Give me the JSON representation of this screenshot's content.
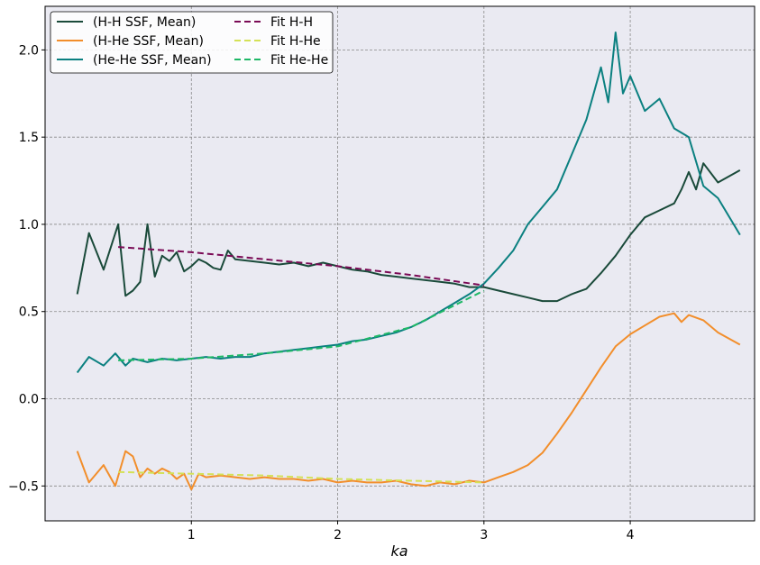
{
  "chart_data": {
    "type": "line",
    "xlabel": "ka",
    "ylabel": "",
    "xlim": [
      0.0,
      4.85
    ],
    "ylim": [
      -0.7,
      2.25
    ],
    "xticks": [
      1,
      2,
      3,
      4
    ],
    "xtick_labels": [
      "1",
      "2",
      "3",
      "4"
    ],
    "yticks": [
      -0.5,
      0.0,
      0.5,
      1.0,
      1.5,
      2.0
    ],
    "ytick_labels": [
      "−0.5",
      "0.0",
      "0.5",
      "1.0",
      "1.5",
      "2.0"
    ],
    "grid": true,
    "legend_position": "top-left",
    "background": "#eaeaf2",
    "series": [
      {
        "name": "(H-H SSF, Mean)",
        "color": "#1a4a3a",
        "style": "solid",
        "x": [
          0.22,
          0.3,
          0.4,
          0.5,
          0.55,
          0.6,
          0.65,
          0.7,
          0.75,
          0.8,
          0.85,
          0.9,
          0.95,
          1.0,
          1.05,
          1.1,
          1.15,
          1.2,
          1.25,
          1.3,
          1.4,
          1.5,
          1.6,
          1.7,
          1.8,
          1.9,
          2.0,
          2.1,
          2.2,
          2.3,
          2.4,
          2.5,
          2.6,
          2.7,
          2.8,
          2.9,
          3.0,
          3.1,
          3.2,
          3.3,
          3.4,
          3.5,
          3.6,
          3.7,
          3.8,
          3.9,
          4.0,
          4.1,
          4.2,
          4.3,
          4.35,
          4.4,
          4.45,
          4.5,
          4.6,
          4.75
        ],
        "y": [
          0.6,
          0.95,
          0.74,
          1.0,
          0.59,
          0.62,
          0.67,
          1.0,
          0.7,
          0.82,
          0.79,
          0.84,
          0.73,
          0.76,
          0.8,
          0.78,
          0.75,
          0.74,
          0.85,
          0.8,
          0.79,
          0.78,
          0.77,
          0.78,
          0.76,
          0.78,
          0.76,
          0.74,
          0.73,
          0.71,
          0.7,
          0.69,
          0.68,
          0.67,
          0.66,
          0.64,
          0.64,
          0.62,
          0.6,
          0.58,
          0.56,
          0.56,
          0.6,
          0.63,
          0.72,
          0.82,
          0.94,
          1.04,
          1.08,
          1.12,
          1.2,
          1.3,
          1.2,
          1.35,
          1.24,
          1.31
        ]
      },
      {
        "name": "(H-He SSF, Mean)",
        "color": "#f28e2b",
        "style": "solid",
        "x": [
          0.22,
          0.3,
          0.4,
          0.48,
          0.55,
          0.6,
          0.65,
          0.7,
          0.75,
          0.8,
          0.85,
          0.9,
          0.95,
          1.0,
          1.05,
          1.1,
          1.2,
          1.3,
          1.4,
          1.5,
          1.6,
          1.7,
          1.8,
          1.9,
          2.0,
          2.1,
          2.2,
          2.3,
          2.4,
          2.5,
          2.6,
          2.7,
          2.8,
          2.9,
          3.0,
          3.1,
          3.2,
          3.3,
          3.4,
          3.5,
          3.6,
          3.7,
          3.8,
          3.9,
          4.0,
          4.1,
          4.2,
          4.3,
          4.35,
          4.4,
          4.5,
          4.6,
          4.75
        ],
        "y": [
          -0.3,
          -0.48,
          -0.38,
          -0.5,
          -0.3,
          -0.33,
          -0.45,
          -0.4,
          -0.43,
          -0.4,
          -0.42,
          -0.46,
          -0.43,
          -0.52,
          -0.43,
          -0.45,
          -0.44,
          -0.45,
          -0.46,
          -0.45,
          -0.46,
          -0.46,
          -0.47,
          -0.46,
          -0.48,
          -0.47,
          -0.48,
          -0.48,
          -0.47,
          -0.49,
          -0.5,
          -0.48,
          -0.49,
          -0.47,
          -0.48,
          -0.45,
          -0.42,
          -0.38,
          -0.31,
          -0.2,
          -0.08,
          0.05,
          0.18,
          0.3,
          0.37,
          0.42,
          0.47,
          0.49,
          0.44,
          0.48,
          0.45,
          0.38,
          0.31
        ]
      },
      {
        "name": "(He-He SSF, Mean)",
        "color": "#0b8080",
        "style": "solid",
        "x": [
          0.22,
          0.3,
          0.4,
          0.48,
          0.55,
          0.6,
          0.7,
          0.8,
          0.9,
          1.0,
          1.1,
          1.2,
          1.3,
          1.4,
          1.5,
          1.6,
          1.7,
          1.8,
          1.9,
          2.0,
          2.1,
          2.2,
          2.3,
          2.4,
          2.5,
          2.6,
          2.7,
          2.8,
          2.9,
          3.0,
          3.1,
          3.2,
          3.3,
          3.4,
          3.5,
          3.6,
          3.65,
          3.7,
          3.75,
          3.8,
          3.85,
          3.9,
          3.95,
          4.0,
          4.05,
          4.1,
          4.2,
          4.3,
          4.4,
          4.5,
          4.6,
          4.75
        ],
        "y": [
          0.15,
          0.24,
          0.19,
          0.26,
          0.19,
          0.23,
          0.21,
          0.23,
          0.22,
          0.23,
          0.24,
          0.23,
          0.24,
          0.24,
          0.26,
          0.27,
          0.28,
          0.29,
          0.3,
          0.31,
          0.33,
          0.34,
          0.36,
          0.38,
          0.41,
          0.45,
          0.5,
          0.55,
          0.6,
          0.66,
          0.75,
          0.85,
          1.0,
          1.1,
          1.2,
          1.4,
          1.5,
          1.6,
          1.75,
          1.9,
          1.7,
          2.1,
          1.75,
          1.85,
          1.75,
          1.65,
          1.72,
          1.55,
          1.5,
          1.22,
          1.15,
          0.94
        ]
      },
      {
        "name": "Fit H-H",
        "color": "#7a0a55",
        "style": "dashed",
        "x": [
          0.5,
          1.0,
          1.5,
          2.0,
          2.5,
          3.0
        ],
        "y": [
          0.87,
          0.84,
          0.8,
          0.76,
          0.71,
          0.65
        ]
      },
      {
        "name": "Fit H-He",
        "color": "#d4e157",
        "style": "dashed",
        "x": [
          0.5,
          1.0,
          1.5,
          2.0,
          2.5,
          3.0
        ],
        "y": [
          -0.42,
          -0.43,
          -0.44,
          -0.46,
          -0.47,
          -0.48
        ]
      },
      {
        "name": "Fit He-He",
        "color": "#1eb866",
        "style": "dashed",
        "x": [
          0.5,
          1.0,
          1.5,
          2.0,
          2.5,
          3.0
        ],
        "y": [
          0.22,
          0.23,
          0.26,
          0.3,
          0.41,
          0.62
        ]
      }
    ]
  }
}
